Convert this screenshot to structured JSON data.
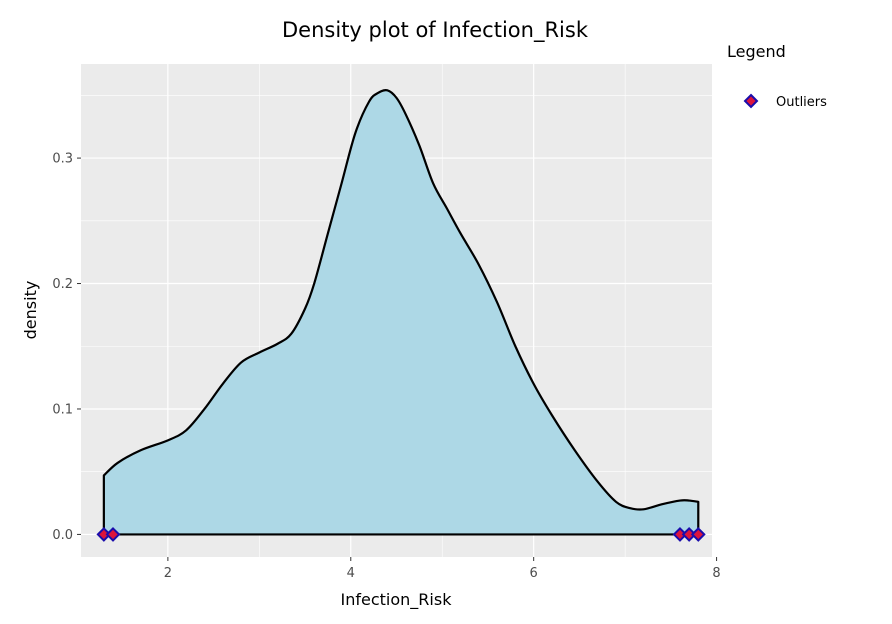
{
  "chart_data": {
    "type": "area",
    "title": "Density plot of Infection_Risk",
    "xlabel": "Infection_Risk",
    "ylabel": "density",
    "xlim": [
      1.05,
      7.95
    ],
    "ylim": [
      -0.018,
      0.375
    ],
    "x_ticks": [
      2,
      4,
      6,
      8
    ],
    "x_tick_labels": [
      "2",
      "4",
      "6",
      "8"
    ],
    "y_ticks": [
      0.0,
      0.1,
      0.2,
      0.3
    ],
    "y_tick_labels": [
      "0.0",
      "0.1",
      "0.2",
      "0.3"
    ],
    "grid": true,
    "panel_background": "#ebebeb",
    "fill_color": "#add8e6",
    "line_color": "#000000",
    "legend": {
      "title": "Legend",
      "position": "right",
      "entries": [
        "Outliers"
      ]
    },
    "density_curve": {
      "x": [
        1.3,
        1.45,
        1.7,
        2.0,
        2.2,
        2.4,
        2.6,
        2.8,
        3.0,
        3.2,
        3.35,
        3.5,
        3.6,
        3.75,
        3.9,
        4.05,
        4.2,
        4.3,
        4.4,
        4.5,
        4.6,
        4.75,
        4.9,
        5.05,
        5.2,
        5.4,
        5.6,
        5.8,
        6.0,
        6.2,
        6.45,
        6.7,
        6.9,
        7.05,
        7.2,
        7.4,
        7.6,
        7.7,
        7.8
      ],
      "y": [
        0.047,
        0.057,
        0.067,
        0.075,
        0.083,
        0.1,
        0.12,
        0.137,
        0.145,
        0.152,
        0.16,
        0.18,
        0.2,
        0.24,
        0.28,
        0.32,
        0.345,
        0.352,
        0.354,
        0.348,
        0.335,
        0.31,
        0.28,
        0.26,
        0.24,
        0.215,
        0.185,
        0.15,
        0.12,
        0.095,
        0.067,
        0.042,
        0.026,
        0.021,
        0.02,
        0.024,
        0.027,
        0.027,
        0.026
      ]
    },
    "outliers": {
      "name": "Outliers",
      "x": [
        1.3,
        1.4,
        7.6,
        7.7,
        7.8
      ],
      "y": [
        0,
        0,
        0,
        0,
        0
      ],
      "fill_color": "#dc143c",
      "stroke_color": "#1a0dab"
    }
  }
}
